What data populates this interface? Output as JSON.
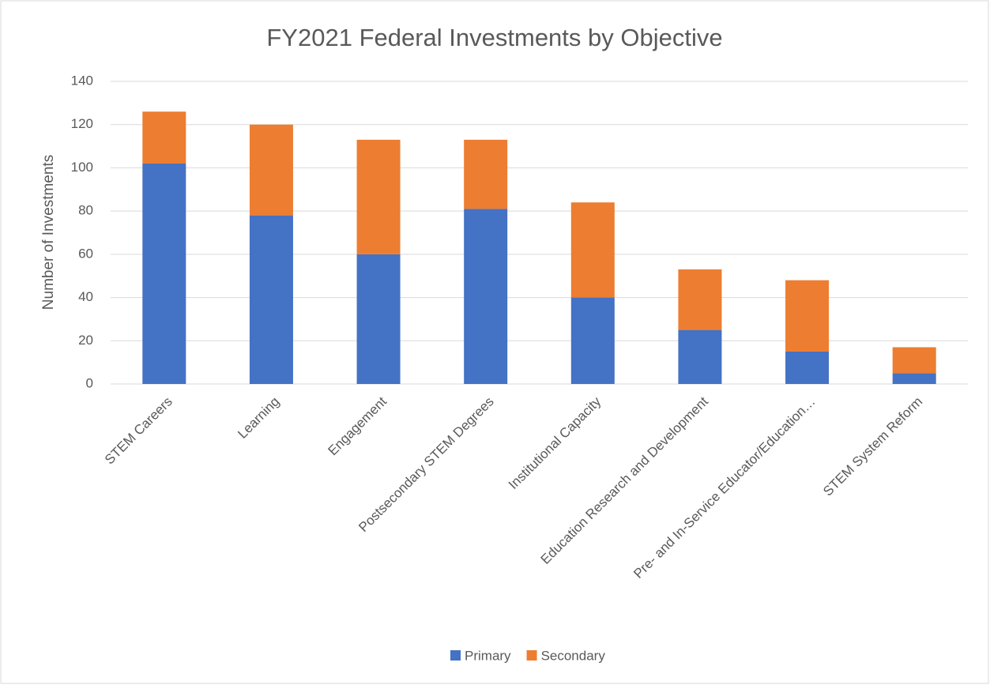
{
  "chart_data": {
    "type": "stacked_bar",
    "title": "FY2021 Federal Investments by Objective",
    "y_label": "Number of Investments",
    "categories": [
      "STEM Careers",
      "Learning",
      "Engagement",
      "Postsecondary STEM Degrees",
      "Institutional Capacity",
      "Education Research and Development",
      "Pre- and In-Service Educator/Education…",
      "STEM System Reform"
    ],
    "series": [
      {
        "name": "Primary",
        "color": "#4472c4",
        "values": [
          102,
          78,
          60,
          81,
          40,
          25,
          15,
          5
        ]
      },
      {
        "name": "Secondary",
        "color": "#ed7d31",
        "values": [
          24,
          42,
          53,
          32,
          44,
          28,
          33,
          12
        ]
      }
    ],
    "ylim": [
      0,
      140
    ],
    "yticks": [
      0,
      20,
      40,
      60,
      80,
      100,
      120,
      140
    ],
    "grid": true,
    "legend": "bottom"
  }
}
